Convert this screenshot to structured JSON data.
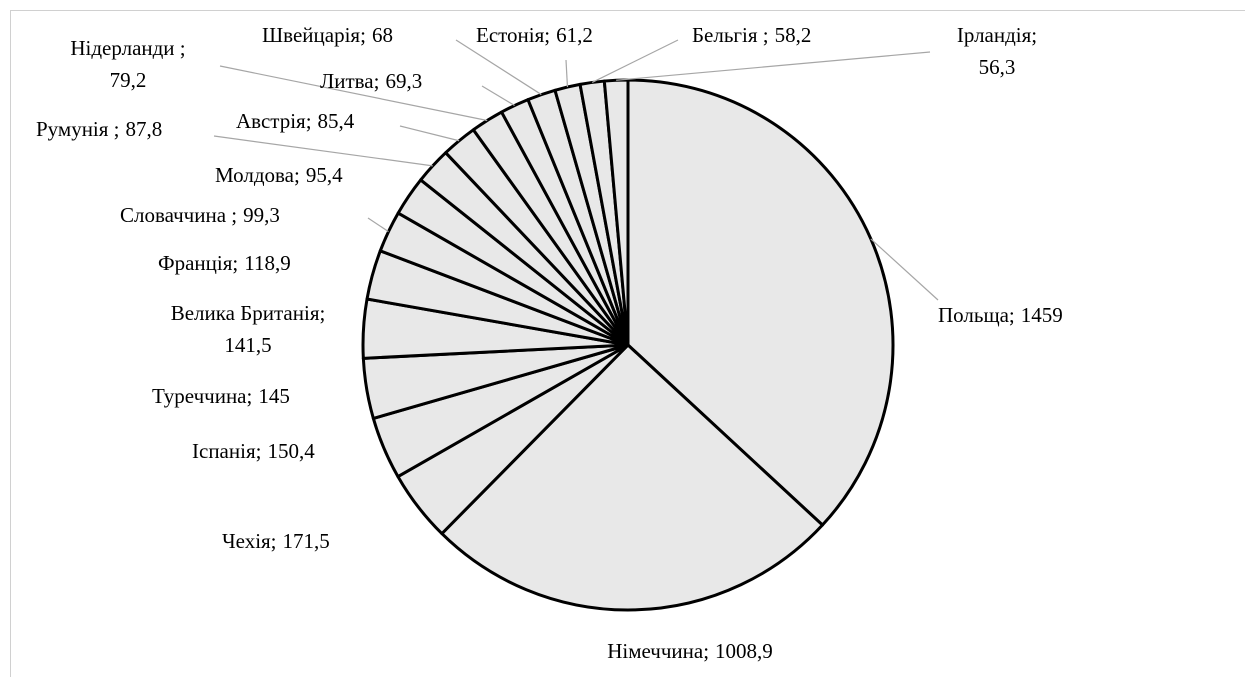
{
  "chart_data": {
    "type": "pie",
    "categories": [
      "Польща;",
      "Німеччина;",
      "Чехія;",
      "Іспанія;",
      "Туреччина;",
      "Велика Британія;",
      "Франція;",
      "Словаччина ;",
      "Молдова;",
      "Румунія ;",
      "Австрія;",
      "Нідерланди ;",
      "Литва;",
      "Швейцарія;",
      "Естонія;",
      "Бельгія ;",
      "Ірландія;"
    ],
    "values": [
      1459,
      1008.9,
      171.5,
      150.4,
      145,
      141.5,
      118.9,
      99.3,
      95.4,
      87.8,
      85.4,
      79.2,
      69.3,
      68,
      61.2,
      58.2,
      56.3
    ],
    "value_labels": [
      "1459",
      "1008,9",
      "171,5",
      "150,4",
      "145",
      "141,5",
      "118,9",
      "99,3",
      "95,4",
      "87,8",
      "85,4",
      "79,2",
      "69,3",
      "68",
      "61,2",
      "58,2",
      "56,3"
    ],
    "color": "#e8e8e8"
  }
}
